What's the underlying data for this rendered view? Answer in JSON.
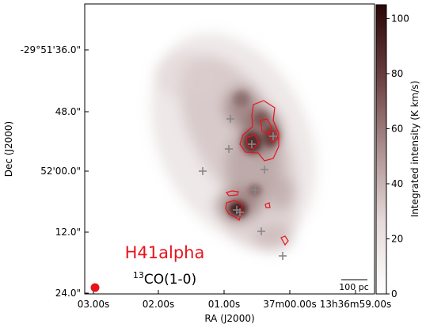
{
  "chart_data": {
    "type": "heatmap",
    "xlabel": "RA (J2000)",
    "ylabel": "Dec (J2000)",
    "x_ticks": [
      "03.00s",
      "02.00s",
      "01.00s",
      "37m00.00s",
      "13h36m59.00s"
    ],
    "y_ticks": [
      "-29°51'36.0\"",
      "48.0\"",
      "52'00.0\"",
      "12.0\"",
      "24.0\""
    ],
    "colorbar": {
      "label": "Integrated intensity (K km/s)",
      "ticks": [
        0,
        20,
        40,
        60,
        80,
        100
      ],
      "range": [
        0,
        105
      ],
      "colormap": "white-to-dark-red"
    },
    "annotations": {
      "contour_label": "H41alpha",
      "contour_color": "#e8141c",
      "image_label_base": "13",
      "image_label_rest": "CO(1-0)",
      "scalebar_label": "100 pc",
      "beam_color": "#e8141c"
    },
    "markers": {
      "symbol": "+",
      "color": "#888888",
      "count": 11
    }
  }
}
